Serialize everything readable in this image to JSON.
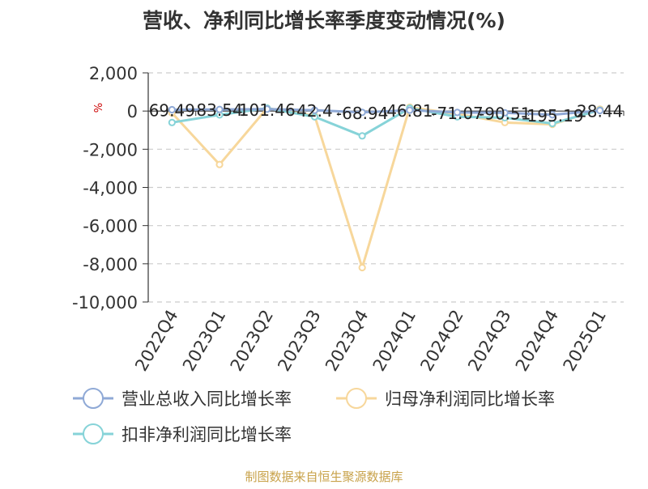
{
  "chart_data": {
    "type": "line",
    "title": "营收、净利同比增长率季度变动情况(%)",
    "ylabel": "%",
    "xlabel": "",
    "categories": [
      "2022Q4",
      "2023Q1",
      "2023Q2",
      "2023Q3",
      "2023Q4",
      "2024Q1",
      "2024Q2",
      "2024Q3",
      "2024Q4",
      "2025Q1"
    ],
    "ylim": [
      -10000,
      2000
    ],
    "yticks": [
      2000,
      0,
      -2000,
      -4000,
      -6000,
      -8000,
      -10000
    ],
    "ytick_labels": [
      "2,000",
      "0",
      "-2,000",
      "-4,000",
      "-6,000",
      "-8,000",
      "-10,000"
    ],
    "grid": true,
    "legend_position": "bottom",
    "series": [
      {
        "name": "营业总收入同比增长率",
        "color": "#8fa9d6",
        "values": [
          69.49,
          83.54,
          101.46,
          42.4,
          -68.94,
          46.81,
          -71.07,
          -90.51,
          -195.19,
          28.44
        ],
        "labels": [
          "69.49",
          "83.54",
          "101.46",
          "42.4",
          "-68.94",
          "46.81",
          "-71.07",
          "-90.51",
          "-195.19",
          "28.44"
        ]
      },
      {
        "name": "归母净利润同比增长率",
        "color": "#f7d79b",
        "values": [
          -100,
          -2800,
          150,
          -250,
          -8200,
          200,
          -150,
          -600,
          -700,
          100
        ]
      },
      {
        "name": "扣非净利润同比增长率",
        "color": "#86d3d8",
        "values": [
          -600,
          -200,
          150,
          -300,
          -1300,
          150,
          -300,
          -350,
          -650,
          50
        ]
      }
    ]
  },
  "source_note": "制图数据来自恒生聚源数据库"
}
